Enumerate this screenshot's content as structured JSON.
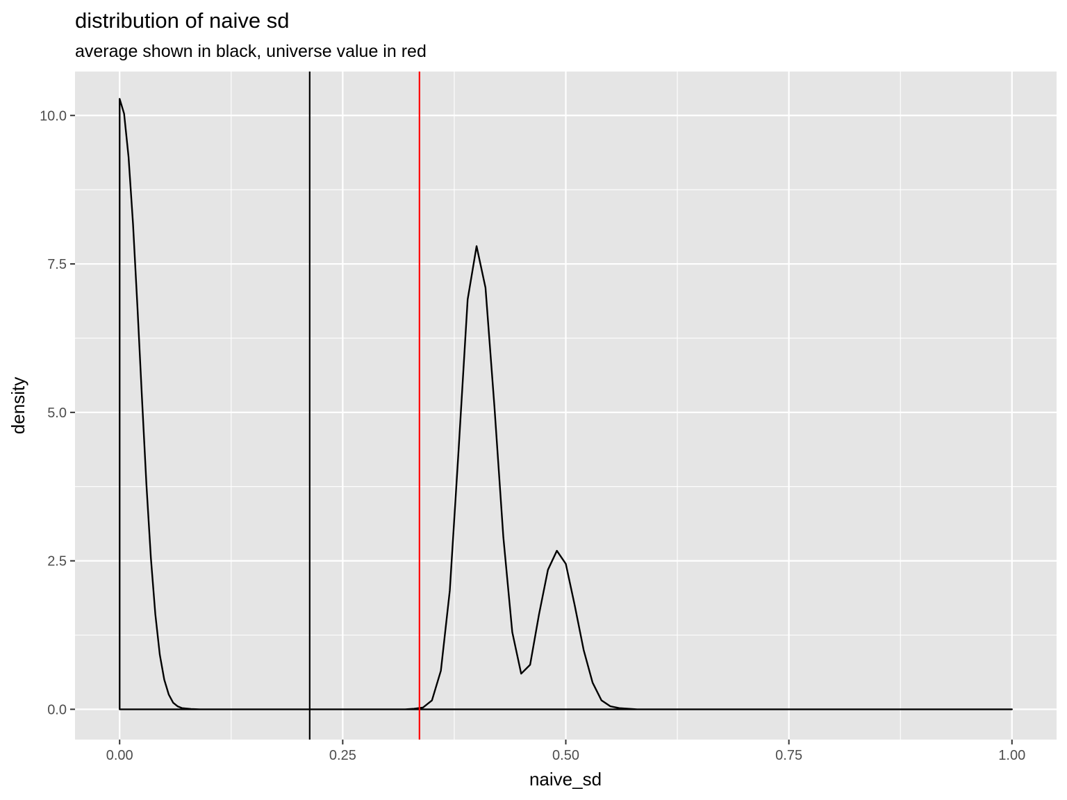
{
  "chart_data": {
    "type": "line",
    "title": "distribution of naive sd",
    "subtitle": "average shown in black, universe value in red",
    "xlabel": "naive_sd",
    "ylabel": "density",
    "xlim": [
      -0.05,
      1.05
    ],
    "ylim": [
      -0.51,
      10.74
    ],
    "x_ticks": [
      0.0,
      0.25,
      0.5,
      0.75,
      1.0
    ],
    "x_tick_labels": [
      "0.00",
      "0.25",
      "0.50",
      "0.75",
      "1.00"
    ],
    "y_ticks": [
      0.0,
      2.5,
      5.0,
      7.5,
      10.0
    ],
    "y_tick_labels": [
      "0.0",
      "2.5",
      "5.0",
      "7.5",
      "10.0"
    ],
    "grid": true,
    "legend": "none",
    "series": [
      {
        "color": "#000000",
        "x": [
          0.0,
          0.005,
          0.01,
          0.015,
          0.02,
          0.025,
          0.03,
          0.035,
          0.04,
          0.045,
          0.05,
          0.055,
          0.06,
          0.065,
          0.07,
          0.08,
          0.09,
          0.1,
          0.15,
          0.2,
          0.25,
          0.3,
          0.32,
          0.33,
          0.34,
          0.35,
          0.36,
          0.37,
          0.38,
          0.39,
          0.4,
          0.41,
          0.42,
          0.43,
          0.44,
          0.45,
          0.46,
          0.47,
          0.48,
          0.49,
          0.5,
          0.51,
          0.52,
          0.53,
          0.54,
          0.55,
          0.56,
          0.58,
          0.6,
          0.7,
          0.8,
          0.9,
          1.0
        ],
        "y": [
          10.28,
          10.03,
          9.3,
          8.17,
          6.76,
          5.25,
          3.79,
          2.55,
          1.6,
          0.92,
          0.5,
          0.25,
          0.11,
          0.05,
          0.02,
          0.005,
          0.0,
          0.0,
          0.0,
          0.0,
          0.0,
          0.0,
          0.0,
          0.01,
          0.03,
          0.15,
          0.65,
          2.0,
          4.4,
          6.9,
          7.8,
          7.1,
          5.1,
          2.9,
          1.3,
          0.6,
          0.75,
          1.6,
          2.35,
          2.67,
          2.45,
          1.75,
          1.0,
          0.45,
          0.15,
          0.05,
          0.02,
          0.0,
          0.0,
          0.0,
          0.0,
          0.0,
          0.0
        ]
      }
    ],
    "vlines": [
      {
        "x": 0.213,
        "color": "#000000"
      },
      {
        "x": 0.336,
        "color": "#ff0000"
      }
    ]
  }
}
